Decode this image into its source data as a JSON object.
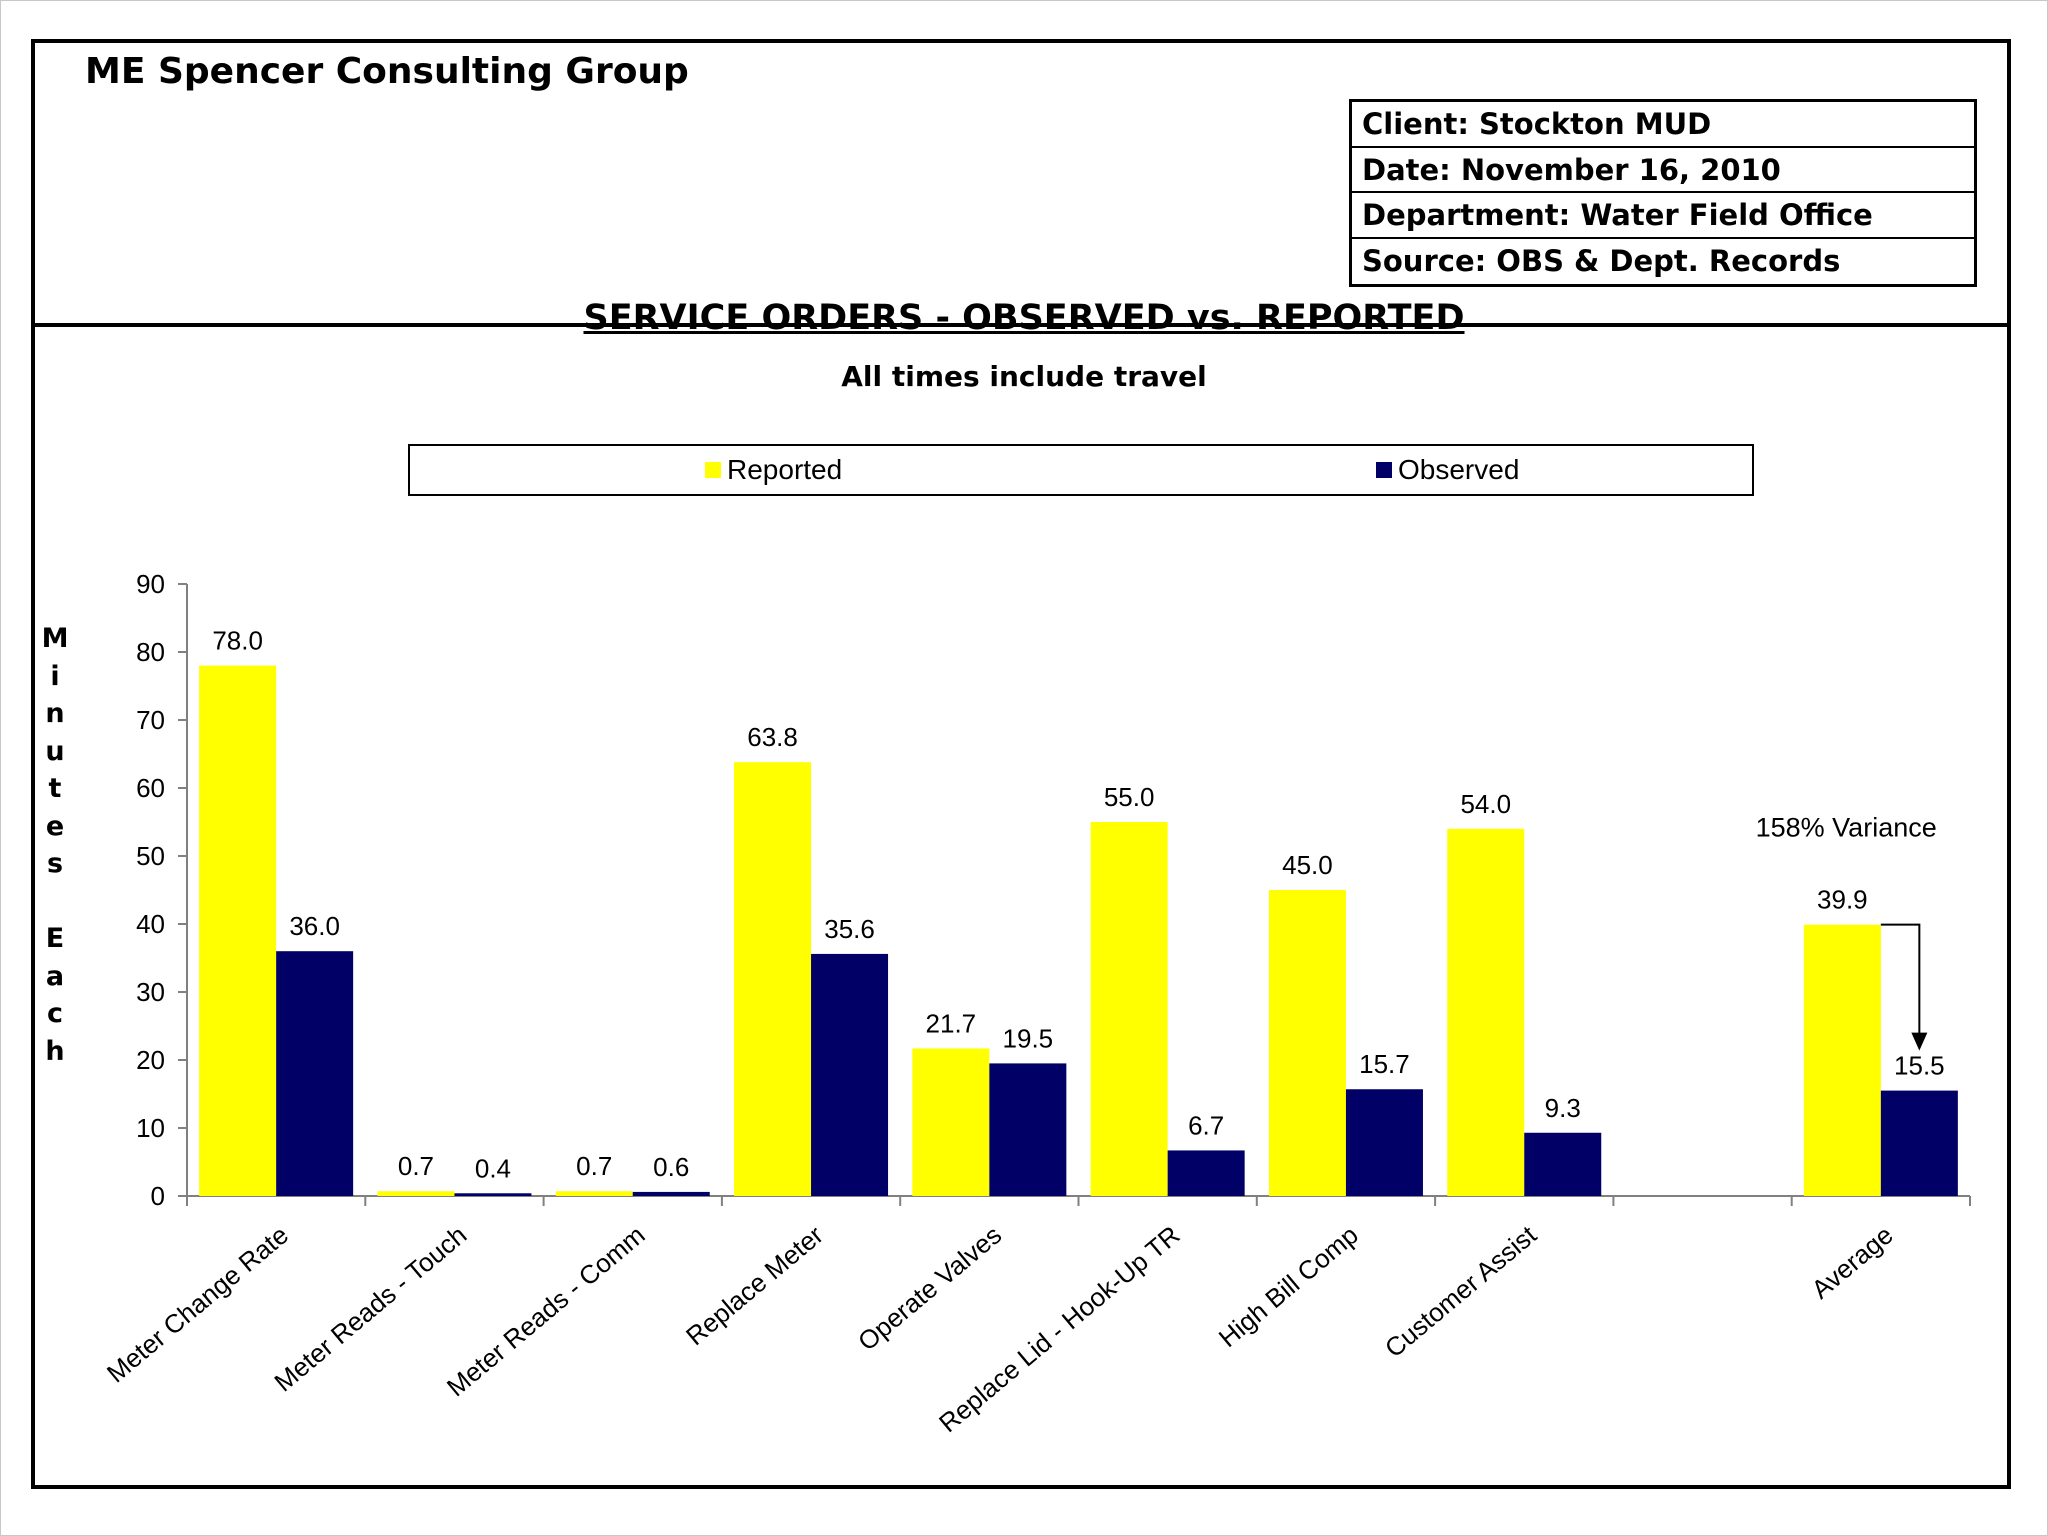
{
  "header": {
    "company": "ME Spencer Consulting Group",
    "info": [
      "Client: Stockton MUD",
      "Date: November 16, 2010",
      "Department: Water Field Office",
      "Source:  OBS & Dept. Records"
    ]
  },
  "colors": {
    "reported": "#ffff00",
    "observed": "#000066"
  },
  "chart_data": {
    "type": "bar",
    "title": "SERVICE ORDERS - OBSERVED vs. REPORTED",
    "subtitle": "All times include travel",
    "ylabel": "Minutes Each",
    "ylim": [
      0,
      90
    ],
    "yticks": [
      0,
      10,
      20,
      30,
      40,
      50,
      60,
      70,
      80,
      90
    ],
    "legend_position": "top",
    "categories": [
      "Meter Change Rate",
      "Meter Reads - Touch",
      "Meter Reads - Comm",
      "Replace Meter",
      "Operate Valves",
      "Replace Lid - Hook-Up TR",
      "High Bill Comp",
      "Customer Assist",
      "",
      "Average"
    ],
    "series": [
      {
        "name": "Reported",
        "values": [
          78.0,
          0.7,
          0.7,
          63.8,
          21.7,
          55.0,
          45.0,
          54.0,
          null,
          39.9
        ],
        "labels": [
          "78.0",
          "0.7",
          "0.7",
          "63.8",
          "21.7",
          "55.0",
          "45.0",
          "54.0",
          "",
          "39.9"
        ]
      },
      {
        "name": "Observed",
        "values": [
          36.0,
          0.4,
          0.6,
          35.6,
          19.5,
          6.7,
          15.7,
          9.3,
          null,
          15.5
        ],
        "labels": [
          "36.0",
          "0.4",
          "0.6",
          "35.6",
          "19.5",
          "6.7",
          "15.7",
          "9.3",
          "",
          "15.5"
        ]
      }
    ],
    "annotation": {
      "text": "158% Variance",
      "category": "Average"
    }
  }
}
